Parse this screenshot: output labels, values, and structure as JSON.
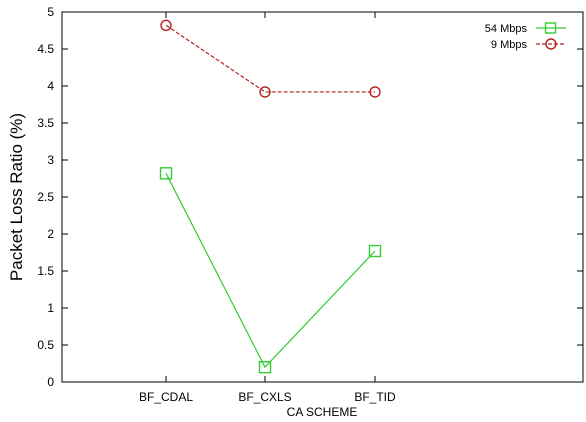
{
  "chart_data": {
    "type": "line",
    "title": "",
    "xlabel": "CA SCHEME",
    "ylabel": "Packet Loss Ratio (%)",
    "categories": [
      "BF_CDAL",
      "BF_CXLS",
      "BF_TID"
    ],
    "ylim": [
      0,
      5
    ],
    "yticks": [
      "0",
      "0.5",
      "1",
      "1.5",
      "2",
      "2.5",
      "3",
      "3.5",
      "4",
      "4.5",
      "5"
    ],
    "grid": false,
    "legend_position": "top-right",
    "series": [
      {
        "name": "54 Mbps",
        "values": [
          2.82,
          0.2,
          1.77
        ],
        "color": "#33cc33",
        "marker": "square",
        "dash": "solid"
      },
      {
        "name": "9 Mbps",
        "values": [
          4.82,
          3.92,
          3.92
        ],
        "color": "#b22222",
        "marker": "circle",
        "dash": "dashed"
      }
    ]
  }
}
